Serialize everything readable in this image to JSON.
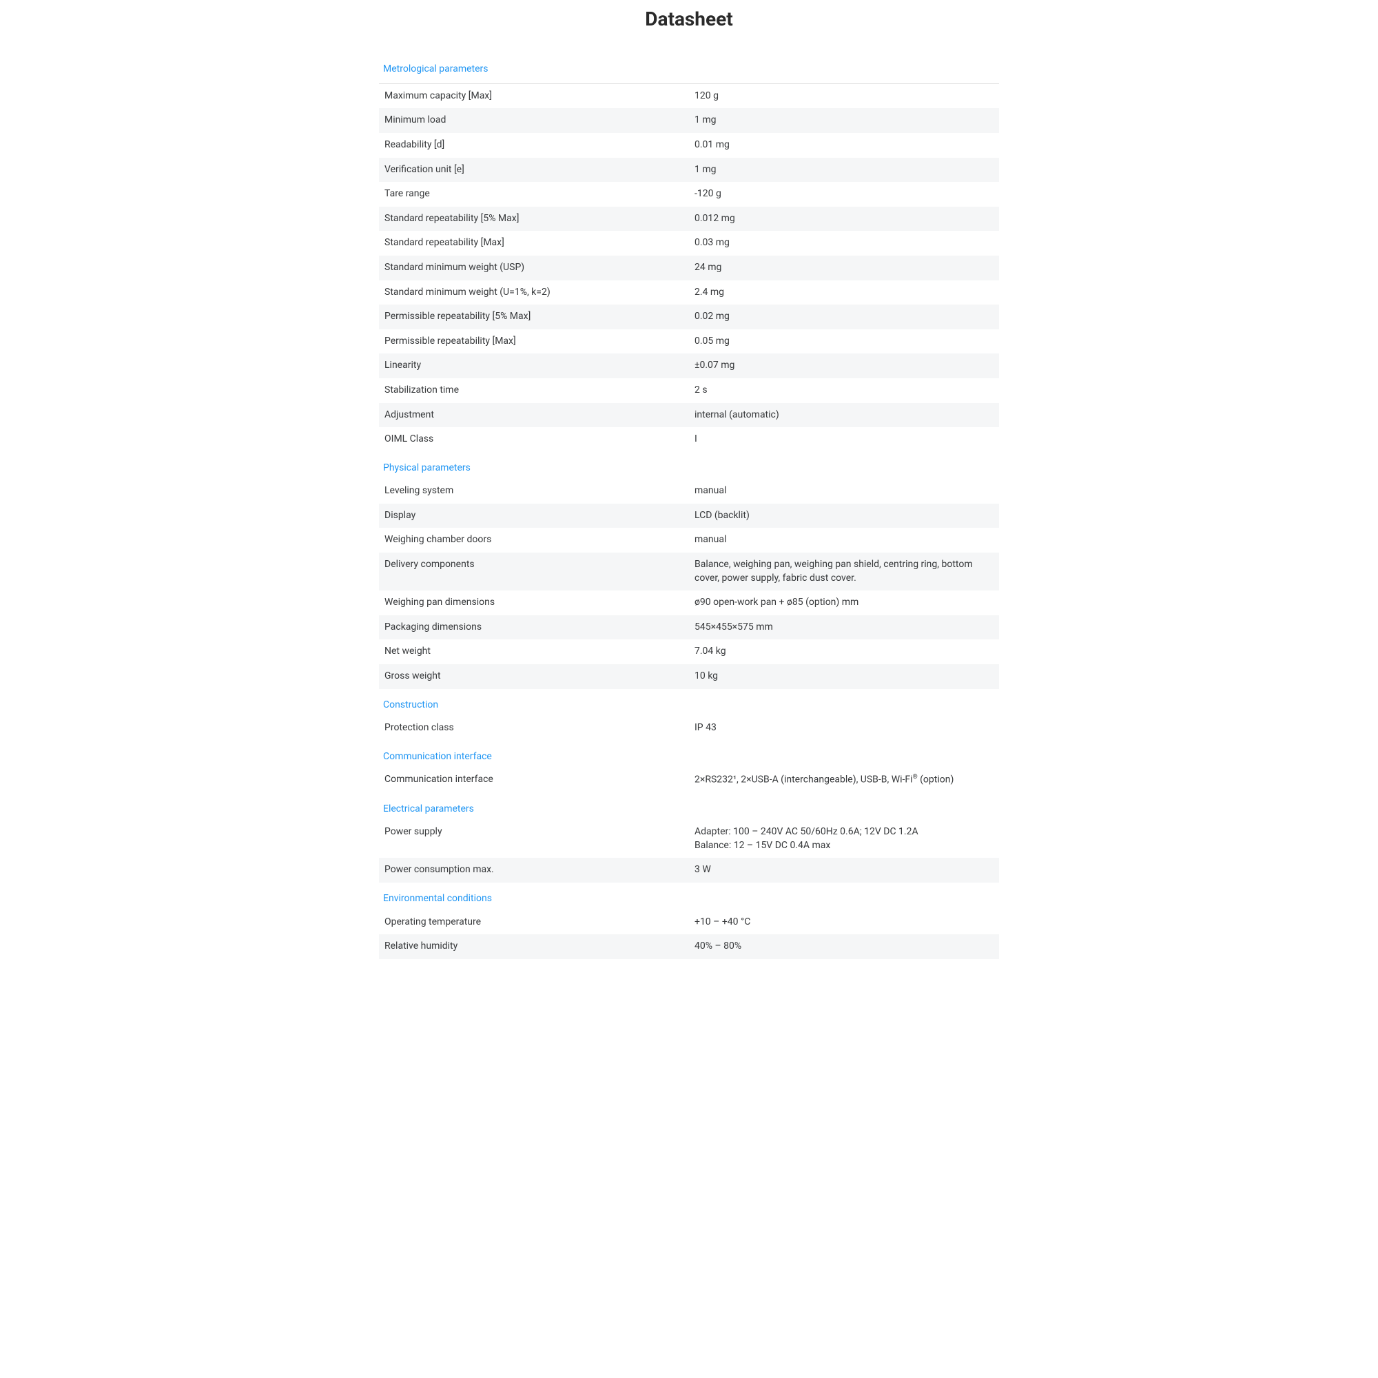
{
  "page": {
    "title": "Datasheet"
  },
  "colors": {
    "section_header": "#2196f3",
    "row_alt_bg": "#f5f6f7",
    "row_bg": "#ffffff",
    "text": "#37393b",
    "title": "#2a2a2a",
    "rule": "#e0e0e0"
  },
  "sections": [
    {
      "title": "Metrological parameters",
      "rows": [
        {
          "label": "Maximum capacity [Max]",
          "value": "120 g"
        },
        {
          "label": "Minimum load",
          "value": "1 mg"
        },
        {
          "label": "Readability [d]",
          "value": "0.01 mg"
        },
        {
          "label": "Verification unit [e]",
          "value": "1 mg"
        },
        {
          "label": "Tare range",
          "value": "-120 g"
        },
        {
          "label": "Standard repeatability [5% Max]",
          "value": "0.012 mg"
        },
        {
          "label": "Standard repeatability [Max]",
          "value": "0.03 mg"
        },
        {
          "label": "Standard minimum weight (USP)",
          "value": "24 mg"
        },
        {
          "label": "Standard minimum weight (U=1%, k=2)",
          "value": "2.4 mg"
        },
        {
          "label": "Permissible repeatability [5% Max]",
          "value": "0.02 mg"
        },
        {
          "label": "Permissible repeatability [Max]",
          "value": "0.05 mg"
        },
        {
          "label": "Linearity",
          "value": "±0.07 mg"
        },
        {
          "label": "Stabilization time",
          "value": "2 s"
        },
        {
          "label": "Adjustment",
          "value": "internal (automatic)"
        },
        {
          "label": "OIML Class",
          "value": "I"
        }
      ]
    },
    {
      "title": "Physical parameters",
      "rows": [
        {
          "label": "Leveling system",
          "value": "manual"
        },
        {
          "label": "Display",
          "value": "LCD (backlit)"
        },
        {
          "label": "Weighing chamber doors",
          "value": "manual"
        },
        {
          "label": "Delivery components",
          "value": "Balance, weighing pan, weighing pan shield, centring ring, bottom cover, power supply, fabric dust cover."
        },
        {
          "label": "Weighing pan dimensions",
          "value": "ø90 open-work pan + ø85 (option) mm"
        },
        {
          "label": "Packaging dimensions",
          "value": "545×455×575 mm"
        },
        {
          "label": "Net weight",
          "value": "7.04 kg"
        },
        {
          "label": "Gross weight",
          "value": "10 kg"
        }
      ]
    },
    {
      "title": "Construction",
      "rows": [
        {
          "label": "Protection class",
          "value": "IP 43"
        }
      ]
    },
    {
      "title": "Communication interface",
      "rows": [
        {
          "label": "Communication interface",
          "value_html": "2×RS232¹, 2×USB-A (interchangeable), USB-B, Wi-Fi<sup>®</sup> (option)"
        }
      ]
    },
    {
      "title": "Electrical parameters",
      "rows": [
        {
          "label": "Power supply",
          "value_html": "Adapter: 100 – 240V AC 50/60Hz 0.6A; 12V DC 1.2A<br>Balance: 12 – 15V DC 0.4A max"
        },
        {
          "label": "Power consumption max.",
          "value": "3 W"
        }
      ]
    },
    {
      "title": "Environmental conditions",
      "rows": [
        {
          "label": "Operating temperature",
          "value": "+10 – +40 °C"
        },
        {
          "label": "Relative humidity",
          "value": "40% – 80%"
        }
      ]
    }
  ]
}
